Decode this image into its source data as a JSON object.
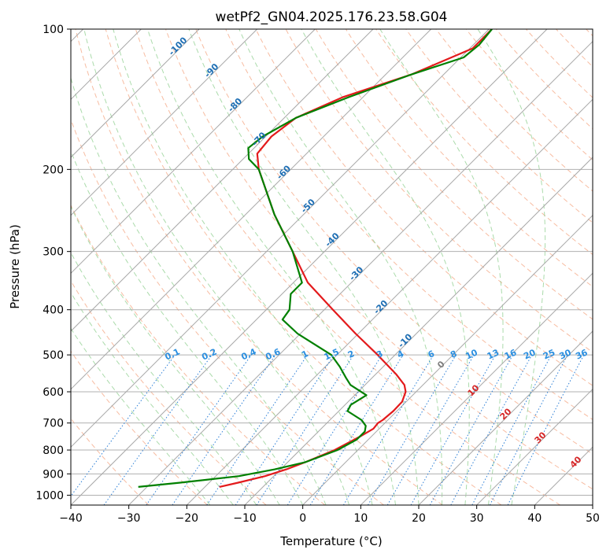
{
  "chart_data": {
    "type": "line",
    "title": "wetPf2_GN04.2025.176.23.58.G04",
    "xlabel": "Temperature (°C)",
    "ylabel": "Pressure (hPa)",
    "xlim": [
      -40,
      50
    ],
    "ylim": [
      1050,
      100
    ],
    "y_scale": "log",
    "skew_deg": 45,
    "x_ticks": [
      -40,
      -30,
      -20,
      -10,
      0,
      10,
      20,
      30,
      40,
      50
    ],
    "y_ticks": [
      100,
      200,
      300,
      400,
      500,
      600,
      700,
      800,
      900,
      1000
    ],
    "grid": true,
    "series": [
      {
        "color": "#e31a1c",
        "points": [
          [
            100,
            -49.5
          ],
          [
            110,
            -49.5
          ],
          [
            125,
            -55.5
          ],
          [
            140,
            -63.5
          ],
          [
            155,
            -68
          ],
          [
            170,
            -69
          ],
          [
            185,
            -68.5
          ],
          [
            200,
            -65.5
          ],
          [
            250,
            -55
          ],
          [
            300,
            -45.5
          ],
          [
            350,
            -37.5
          ],
          [
            400,
            -28.5
          ],
          [
            450,
            -20.5
          ],
          [
            500,
            -13
          ],
          [
            550,
            -6.5
          ],
          [
            580,
            -3.2
          ],
          [
            600,
            -1.8
          ],
          [
            630,
            -0.7
          ],
          [
            660,
            -0.6
          ],
          [
            690,
            -0.9
          ],
          [
            700,
            -1.2
          ],
          [
            720,
            -1
          ],
          [
            750,
            -2
          ],
          [
            800,
            -4
          ],
          [
            850,
            -7
          ],
          [
            880,
            -9
          ],
          [
            910,
            -11.5
          ],
          [
            940,
            -15
          ],
          [
            960,
            -17.5
          ]
        ]
      },
      {
        "color": "#008000",
        "points": [
          [
            100,
            -49.5
          ],
          [
            108,
            -49
          ],
          [
            115,
            -49.5
          ],
          [
            125,
            -55.5
          ],
          [
            140,
            -62.5
          ],
          [
            155,
            -68
          ],
          [
            170,
            -70.5
          ],
          [
            180,
            -71
          ],
          [
            190,
            -69
          ],
          [
            200,
            -65.5
          ],
          [
            250,
            -55
          ],
          [
            300,
            -45.5
          ],
          [
            350,
            -38.5
          ],
          [
            370,
            -38.5
          ],
          [
            400,
            -36
          ],
          [
            420,
            -35.5
          ],
          [
            450,
            -30.5
          ],
          [
            500,
            -21
          ],
          [
            530,
            -17.5
          ],
          [
            560,
            -14.5
          ],
          [
            580,
            -12.5
          ],
          [
            610,
            -8
          ],
          [
            640,
            -9
          ],
          [
            660,
            -8.5
          ],
          [
            690,
            -4.5
          ],
          [
            710,
            -2.8
          ],
          [
            730,
            -2
          ],
          [
            760,
            -2
          ],
          [
            800,
            -3.5
          ],
          [
            850,
            -7
          ],
          [
            880,
            -11
          ],
          [
            910,
            -16
          ],
          [
            940,
            -25
          ],
          [
            960,
            -31.5
          ]
        ]
      }
    ],
    "isotherm_labels": [
      "-100",
      "-90",
      "-80",
      "-70",
      "-60",
      "-50",
      "-40",
      "-30",
      "-20",
      "-10"
    ],
    "mixing_ratio_labels": [
      "0.1",
      "0.2",
      "0.4",
      "0.6",
      "1",
      "1.5",
      "2",
      "3",
      "4",
      "6",
      "8",
      "10",
      "13",
      "16",
      "20",
      "25",
      "30",
      "36"
    ],
    "theta_e_labels": [
      "0",
      "10",
      "20",
      "30",
      "40"
    ]
  }
}
